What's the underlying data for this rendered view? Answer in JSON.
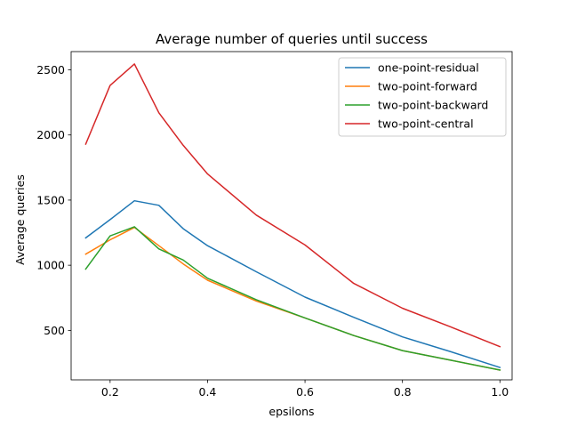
{
  "chart_data": {
    "type": "line",
    "title": "Average number of queries until success",
    "xlabel": "epsilons",
    "ylabel": "Average queries",
    "xlim": [
      0.12,
      1.025
    ],
    "ylim": [
      120,
      2640
    ],
    "xticks": [
      0.2,
      0.4,
      0.6,
      0.8,
      1.0
    ],
    "xtick_labels": [
      "0.2",
      "0.4",
      "0.6",
      "0.8",
      "1.0"
    ],
    "yticks": [
      500,
      1000,
      1500,
      2000,
      2500
    ],
    "ytick_labels": [
      "500",
      "1000",
      "1500",
      "2000",
      "2500"
    ],
    "grid": false,
    "legend_position": "top-right",
    "x": [
      0.15,
      0.2,
      0.25,
      0.3,
      0.35,
      0.4,
      0.5,
      0.6,
      0.7,
      0.8,
      0.9,
      1.0
    ],
    "series": [
      {
        "name": "one-point-residual",
        "color": "#1f77b4",
        "values": [
          1210,
          1350,
          1495,
          1460,
          1280,
          1150,
          950,
          755,
          600,
          450,
          335,
          215
        ]
      },
      {
        "name": "two-point-forward",
        "color": "#ff7f0e",
        "values": [
          1085,
          1195,
          1290,
          1150,
          1010,
          885,
          725,
          595,
          460,
          345,
          270,
          195
        ]
      },
      {
        "name": "two-point-backward",
        "color": "#2ca02c",
        "values": [
          970,
          1225,
          1295,
          1125,
          1040,
          900,
          735,
          595,
          460,
          345,
          270,
          195
        ]
      },
      {
        "name": "two-point-central",
        "color": "#d62728",
        "values": [
          1930,
          2380,
          2545,
          2170,
          1920,
          1700,
          1385,
          1155,
          860,
          670,
          525,
          375
        ]
      }
    ]
  }
}
